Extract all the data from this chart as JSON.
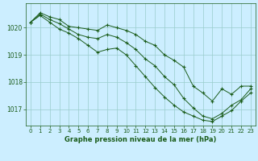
{
  "background_color": "#cceeff",
  "grid_color": "#99cccc",
  "line_color": "#1a5c1a",
  "title": "Graphe pression niveau de la mer (hPa)",
  "xlim": [
    -0.5,
    23.5
  ],
  "ylim": [
    1016.4,
    1020.9
  ],
  "yticks": [
    1017,
    1018,
    1019,
    1020
  ],
  "xticks": [
    0,
    1,
    2,
    3,
    4,
    5,
    6,
    7,
    8,
    9,
    10,
    11,
    12,
    13,
    14,
    15,
    16,
    17,
    18,
    19,
    20,
    21,
    22,
    23
  ],
  "series": [
    {
      "x": [
        0,
        1,
        2,
        3,
        4,
        5,
        6,
        7,
        8,
        9,
        10,
        11,
        12,
        13,
        14,
        15,
        16,
        17,
        18,
        19,
        20,
        21,
        22,
        23
      ],
      "y": [
        1020.2,
        1020.55,
        1020.4,
        1020.3,
        1020.05,
        1020.0,
        1019.95,
        1019.9,
        1020.1,
        1020.0,
        1019.9,
        1019.75,
        1019.5,
        1019.35,
        1019.0,
        1018.8,
        1018.55,
        1017.85,
        1017.6,
        1017.3,
        1017.75,
        1017.55,
        1017.85,
        1017.85
      ]
    },
    {
      "x": [
        0,
        1,
        2,
        3,
        4,
        5,
        6,
        7,
        8,
        9,
        10,
        11,
        12,
        13,
        14,
        15,
        16,
        17,
        18,
        19,
        20,
        21,
        22,
        23
      ],
      "y": [
        1020.2,
        1020.5,
        1020.3,
        1020.15,
        1019.95,
        1019.75,
        1019.65,
        1019.6,
        1019.75,
        1019.65,
        1019.45,
        1019.2,
        1018.85,
        1018.6,
        1018.2,
        1017.9,
        1017.4,
        1017.05,
        1016.75,
        1016.65,
        1016.85,
        1017.15,
        1017.35,
        1017.75
      ]
    },
    {
      "x": [
        0,
        1,
        2,
        3,
        4,
        5,
        6,
        7,
        8,
        9,
        10,
        11,
        12,
        13,
        14,
        15,
        16,
        17,
        18,
        19,
        20,
        21,
        22,
        23
      ],
      "y": [
        1020.2,
        1020.45,
        1020.2,
        1019.95,
        1019.8,
        1019.6,
        1019.35,
        1019.1,
        1019.2,
        1019.25,
        1019.0,
        1018.6,
        1018.2,
        1017.8,
        1017.45,
        1017.15,
        1016.9,
        1016.75,
        1016.6,
        1016.55,
        1016.75,
        1016.95,
        1017.3,
        1017.6
      ]
    }
  ]
}
